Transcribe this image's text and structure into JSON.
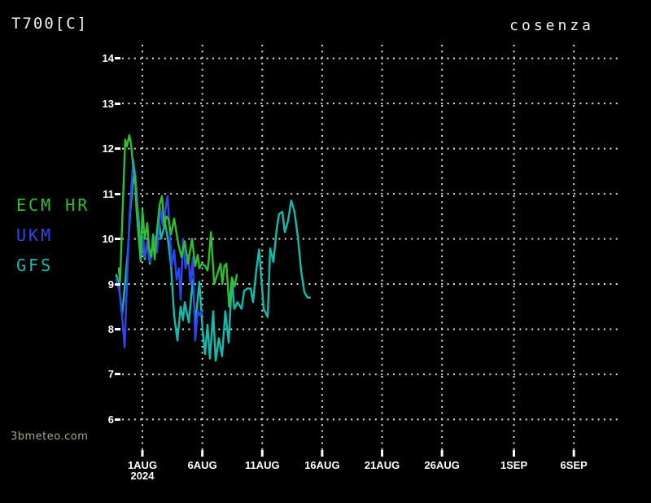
{
  "header": {
    "title": "T700[C]",
    "location": "cosenza"
  },
  "watermark": "3bmeteo.com",
  "colors": {
    "background": "#000000",
    "grid": "#e0e0e0",
    "axis_text": "#ffffff",
    "watermark_text": "#a6a68c"
  },
  "chart_data": {
    "type": "line",
    "title": "T700[C]",
    "subtitle": "cosenza",
    "xlabel": "",
    "ylabel": "",
    "grid": true,
    "legend_position": "left",
    "ylim": [
      6,
      14
    ],
    "y_ticks": [
      14,
      13,
      12,
      11,
      10,
      9,
      8,
      7,
      6
    ],
    "x_ticks": [
      {
        "label": "1AUG",
        "sub": "2024",
        "day": 0
      },
      {
        "label": "6AUG",
        "sub": "",
        "day": 5
      },
      {
        "label": "11AUG",
        "sub": "",
        "day": 10
      },
      {
        "label": "16AUG",
        "sub": "",
        "day": 15
      },
      {
        "label": "21AUG",
        "sub": "",
        "day": 20
      },
      {
        "label": "26AUG",
        "sub": "",
        "day": 25
      },
      {
        "label": "1SEP",
        "sub": "",
        "day": 31
      },
      {
        "label": "6SEP",
        "sub": "",
        "day": 36
      }
    ],
    "x_unit": "days_from_1AUG_2024",
    "series": [
      {
        "name": "ECM HR",
        "color": "#2fc02f",
        "points": [
          [
            -1.97,
            9.35
          ],
          [
            -1.87,
            9.05
          ],
          [
            -1.7,
            10.3
          ],
          [
            -1.43,
            12.2
          ],
          [
            -1.29,
            12.05
          ],
          [
            -1.09,
            12.3
          ],
          [
            -0.95,
            12.1
          ],
          [
            -0.81,
            11.7
          ],
          [
            -0.61,
            11.35
          ],
          [
            -0.48,
            10.6
          ],
          [
            -0.27,
            9.9
          ],
          [
            -0.14,
            9.5
          ],
          [
            0.0,
            10.65
          ],
          [
            0.2,
            10.0
          ],
          [
            0.41,
            10.35
          ],
          [
            0.54,
            9.8
          ],
          [
            0.75,
            9.6
          ],
          [
            0.88,
            10.1
          ],
          [
            1.02,
            9.55
          ],
          [
            1.22,
            10.2
          ],
          [
            1.43,
            10.75
          ],
          [
            1.63,
            10.95
          ],
          [
            1.83,
            10.25
          ],
          [
            1.97,
            10.5
          ],
          [
            2.17,
            10.45
          ],
          [
            2.38,
            10.1
          ],
          [
            2.65,
            10.45
          ],
          [
            2.99,
            9.9
          ],
          [
            3.26,
            9.6
          ],
          [
            3.53,
            9.95
          ],
          [
            3.8,
            9.45
          ],
          [
            4.14,
            10.0
          ],
          [
            4.41,
            9.4
          ],
          [
            4.62,
            9.65
          ],
          [
            4.75,
            9.35
          ],
          [
            4.96,
            9.45
          ],
          [
            5.23,
            9.4
          ],
          [
            5.43,
            9.3
          ],
          [
            5.55,
            9.55
          ],
          [
            5.72,
            10.15
          ],
          [
            5.99,
            9.0
          ],
          [
            6.29,
            9.25
          ],
          [
            6.52,
            9.45
          ],
          [
            6.67,
            9.0
          ],
          [
            6.84,
            9.4
          ],
          [
            7.01,
            9.45
          ],
          [
            7.24,
            8.5
          ],
          [
            7.47,
            9.15
          ],
          [
            7.69,
            8.95
          ],
          [
            7.88,
            9.2
          ]
        ]
      },
      {
        "name": "UKM",
        "color": "#2e46ee",
        "points": [
          [
            -2.17,
            9.1
          ],
          [
            -1.97,
            8.9
          ],
          [
            -1.83,
            8.7
          ],
          [
            -1.7,
            8.3
          ],
          [
            -1.49,
            7.6
          ],
          [
            -1.29,
            9.0
          ],
          [
            -1.09,
            10.4
          ],
          [
            -0.88,
            11.3
          ],
          [
            -0.75,
            11.75
          ],
          [
            -0.61,
            11.45
          ],
          [
            -0.48,
            10.8
          ],
          [
            -0.27,
            9.9
          ],
          [
            -0.14,
            9.55
          ],
          [
            0.07,
            10.05
          ],
          [
            0.2,
            9.6
          ],
          [
            0.41,
            9.95
          ],
          [
            0.61,
            9.5
          ],
          [
            0.81,
            9.85
          ],
          [
            1.02,
            10.05
          ],
          [
            1.22,
            9.7
          ],
          [
            1.49,
            10.7
          ],
          [
            1.7,
            10.3
          ],
          [
            1.9,
            10.6
          ],
          [
            2.1,
            10.95
          ],
          [
            2.31,
            10.05
          ],
          [
            2.44,
            9.4
          ],
          [
            2.65,
            9.75
          ],
          [
            2.85,
            9.1
          ],
          [
            3.05,
            9.35
          ],
          [
            3.19,
            8.65
          ],
          [
            3.39,
            10.0
          ],
          [
            3.6,
            9.35
          ],
          [
            3.8,
            9.65
          ],
          [
            4.01,
            9.0
          ],
          [
            4.21,
            9.6
          ],
          [
            4.41,
            7.75
          ],
          [
            4.62,
            8.4
          ],
          [
            4.82,
            8.3
          ],
          [
            4.96,
            8.4
          ]
        ]
      },
      {
        "name": "GFS",
        "color": "#10bcae",
        "points": [
          [
            -2.17,
            9.2
          ],
          [
            -1.97,
            9.0
          ],
          [
            -1.7,
            8.3
          ],
          [
            -1.49,
            8.9
          ],
          [
            -1.22,
            9.7
          ],
          [
            -1.02,
            10.6
          ],
          [
            -0.81,
            11.2
          ],
          [
            -0.61,
            11.5
          ],
          [
            -0.41,
            10.7
          ],
          [
            -0.27,
            10.3
          ],
          [
            -0.14,
            9.55
          ],
          [
            0.07,
            9.85
          ],
          [
            0.2,
            9.55
          ],
          [
            0.41,
            9.95
          ],
          [
            0.61,
            9.45
          ],
          [
            0.81,
            9.8
          ],
          [
            1.02,
            9.7
          ],
          [
            1.36,
            10.45
          ],
          [
            1.56,
            10.0
          ],
          [
            1.9,
            10.35
          ],
          [
            2.17,
            9.9
          ],
          [
            2.38,
            9.4
          ],
          [
            2.65,
            8.3
          ],
          [
            2.92,
            7.75
          ],
          [
            3.19,
            8.5
          ],
          [
            3.39,
            8.2
          ],
          [
            3.53,
            8.6
          ],
          [
            3.87,
            8.15
          ],
          [
            4.21,
            9.1
          ],
          [
            4.41,
            8.1
          ],
          [
            4.75,
            9.05
          ],
          [
            5.02,
            8.0
          ],
          [
            5.23,
            7.45
          ],
          [
            5.43,
            8.1
          ],
          [
            5.63,
            7.35
          ],
          [
            5.91,
            8.4
          ],
          [
            6.11,
            7.3
          ],
          [
            6.38,
            7.8
          ],
          [
            6.65,
            7.4
          ],
          [
            6.92,
            8.4
          ],
          [
            7.2,
            7.7
          ],
          [
            7.47,
            9.1
          ],
          [
            7.67,
            8.45
          ],
          [
            7.94,
            8.6
          ],
          [
            8.28,
            8.45
          ],
          [
            8.49,
            8.85
          ],
          [
            8.76,
            8.9
          ],
          [
            9.03,
            8.9
          ],
          [
            9.23,
            8.6
          ],
          [
            9.5,
            9.3
          ],
          [
            9.74,
            9.77
          ],
          [
            10.12,
            8.45
          ],
          [
            10.46,
            8.27
          ],
          [
            10.66,
            9.79
          ],
          [
            10.93,
            9.49
          ],
          [
            11.2,
            10.2
          ],
          [
            11.4,
            10.55
          ],
          [
            11.68,
            10.6
          ],
          [
            11.88,
            10.15
          ],
          [
            12.15,
            10.4
          ],
          [
            12.42,
            10.85
          ],
          [
            12.69,
            10.6
          ],
          [
            12.97,
            10.05
          ],
          [
            13.24,
            9.3
          ],
          [
            13.51,
            8.82
          ],
          [
            13.78,
            8.7
          ],
          [
            13.98,
            8.7
          ]
        ]
      }
    ]
  }
}
